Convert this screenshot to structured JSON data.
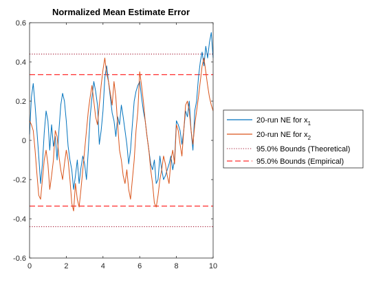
{
  "chart_data": {
    "type": "line",
    "title": "Normalized Mean Estimate Error",
    "xlabel": "",
    "ylabel": "",
    "xlim": [
      0,
      10
    ],
    "ylim": [
      -0.6,
      0.6
    ],
    "xticks": [
      0,
      2,
      4,
      6,
      8,
      10
    ],
    "yticks": [
      -0.6,
      -0.4,
      -0.2,
      0,
      0.2,
      0.4,
      0.6
    ],
    "xtick_labels": [
      "0",
      "2",
      "4",
      "6",
      "8",
      "10"
    ],
    "ytick_labels": [
      "-0.6",
      "-0.4",
      "-0.2",
      "0",
      "0.2",
      "0.4",
      "0.6"
    ],
    "grid": false,
    "legend_position": "outside-right",
    "x": [
      0.0,
      0.1,
      0.2,
      0.3,
      0.4,
      0.5,
      0.6,
      0.7,
      0.8,
      0.9,
      1.0,
      1.1,
      1.2,
      1.3,
      1.4,
      1.5,
      1.6,
      1.7,
      1.8,
      1.9,
      2.0,
      2.1,
      2.2,
      2.3,
      2.4,
      2.5,
      2.6,
      2.7,
      2.8,
      2.9,
      3.0,
      3.1,
      3.2,
      3.3,
      3.4,
      3.5,
      3.6,
      3.7,
      3.8,
      3.9,
      4.0,
      4.1,
      4.2,
      4.3,
      4.4,
      4.5,
      4.6,
      4.7,
      4.8,
      4.9,
      5.0,
      5.1,
      5.2,
      5.3,
      5.4,
      5.5,
      5.6,
      5.7,
      5.8,
      5.9,
      6.0,
      6.1,
      6.2,
      6.3,
      6.4,
      6.5,
      6.6,
      6.7,
      6.8,
      6.9,
      7.0,
      7.1,
      7.2,
      7.3,
      7.4,
      7.5,
      7.6,
      7.7,
      7.8,
      7.9,
      8.0,
      8.1,
      8.2,
      8.3,
      8.4,
      8.5,
      8.6,
      8.7,
      8.8,
      8.9,
      9.0,
      9.1,
      9.2,
      9.3,
      9.4,
      9.5,
      9.6,
      9.7,
      9.8,
      9.9,
      10.0
    ],
    "series": [
      {
        "name": "20-run NE for x",
        "name_subscript": "1",
        "color": "#0072BD",
        "line_style": "solid",
        "values": [
          0.03,
          0.22,
          0.29,
          0.18,
          0.05,
          -0.08,
          -0.22,
          -0.12,
          0.04,
          0.15,
          0.1,
          -0.05,
          0.08,
          -0.03,
          0.02,
          -0.1,
          0.05,
          0.18,
          0.24,
          0.2,
          0.1,
          -0.03,
          -0.1,
          -0.15,
          -0.25,
          -0.18,
          -0.1,
          -0.22,
          -0.14,
          -0.08,
          -0.12,
          -0.2,
          -0.05,
          0.12,
          0.22,
          0.3,
          0.25,
          0.18,
          -0.02,
          0.05,
          0.15,
          0.32,
          0.38,
          0.3,
          0.22,
          0.14,
          0.1,
          0.02,
          0.12,
          0.08,
          0.18,
          0.12,
          0.05,
          -0.02,
          -0.12,
          -0.05,
          0.08,
          0.2,
          0.25,
          0.28,
          0.3,
          0.22,
          0.15,
          0.1,
          0.02,
          -0.05,
          -0.12,
          -0.15,
          -0.1,
          -0.22,
          -0.2,
          -0.08,
          -0.15,
          -0.2,
          -0.18,
          -0.15,
          -0.12,
          -0.08,
          -0.15,
          -0.1,
          0.1,
          0.08,
          0.05,
          -0.02,
          0.05,
          0.15,
          0.12,
          0.2,
          0.05,
          -0.05,
          0.15,
          0.2,
          0.32,
          0.4,
          0.45,
          0.38,
          0.48,
          0.42,
          0.5,
          0.55,
          0.42
        ]
      },
      {
        "name": "20-run NE for x",
        "name_subscript": "2",
        "color": "#D95319",
        "line_style": "solid",
        "values": [
          0.1,
          0.08,
          0.05,
          -0.05,
          -0.17,
          -0.28,
          -0.3,
          -0.2,
          -0.1,
          -0.05,
          -0.12,
          -0.25,
          -0.18,
          -0.1,
          0.05,
          0.02,
          -0.08,
          -0.15,
          -0.2,
          -0.12,
          -0.05,
          -0.1,
          -0.2,
          -0.32,
          -0.36,
          -0.22,
          -0.3,
          -0.34,
          -0.25,
          -0.15,
          -0.05,
          0.05,
          0.15,
          0.22,
          0.28,
          0.2,
          0.12,
          0.08,
          0.18,
          0.28,
          0.36,
          0.42,
          0.34,
          0.3,
          0.24,
          0.18,
          0.3,
          0.22,
          0.08,
          -0.05,
          -0.1,
          -0.18,
          -0.22,
          -0.15,
          -0.25,
          -0.3,
          -0.2,
          -0.1,
          0.05,
          0.15,
          0.35,
          0.28,
          0.2,
          0.1,
          0.02,
          -0.05,
          -0.15,
          -0.22,
          -0.32,
          -0.34,
          -0.28,
          -0.2,
          -0.15,
          -0.08,
          -0.12,
          -0.18,
          -0.22,
          -0.1,
          -0.05,
          -0.12,
          0.08,
          0.05,
          -0.02,
          -0.08,
          0.05,
          0.18,
          0.2,
          0.15,
          0.05,
          -0.02,
          0.08,
          0.15,
          0.22,
          0.3,
          0.38,
          0.42,
          0.35,
          0.28,
          0.22,
          0.18,
          0.15
        ]
      }
    ],
    "reference_lines": [
      {
        "name": "95.0% Bounds (Theoretical)",
        "color": "#A2142F",
        "line_style": "dotted",
        "values": [
          0.44,
          -0.44
        ]
      },
      {
        "name": "95.0% Bounds (Empirical)",
        "color": "#FF2A2A",
        "line_style": "dashed",
        "values": [
          0.335,
          -0.335
        ]
      }
    ]
  }
}
